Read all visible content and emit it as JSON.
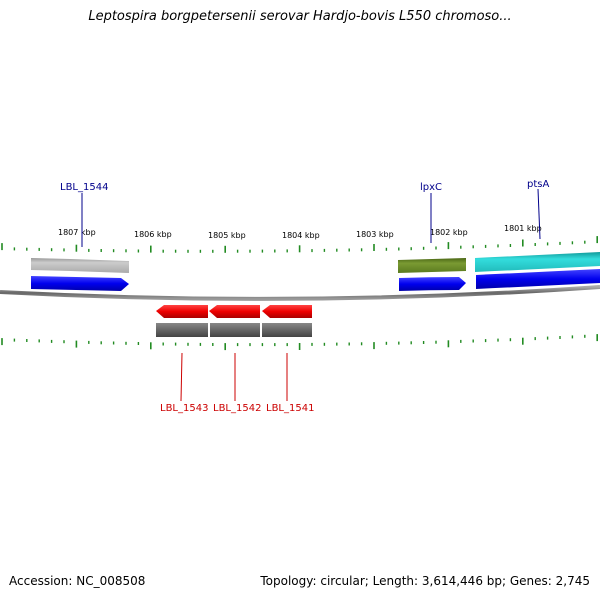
{
  "title": "Leptospira borgpetersenii serovar Hardjo-bovis L550 chromoso...",
  "footer": {
    "accession": "Accession: NC_008508",
    "summary": "Topology: circular; Length: 3,614,446 bp; Genes: 2,745"
  },
  "colors": {
    "backbone": "#777777",
    "tick": "#228b22",
    "forward_label": "#00008b",
    "reverse_label": "#cc0000",
    "cds_forward": "#0000ee",
    "cds_reverse": "#ee0000",
    "gene_reverse": "#666666",
    "gene_grey": "#bbbbbb",
    "gene_olive": "#6b8e23",
    "gene_cyan": "#22cccc"
  },
  "scale_labels": [
    "1807 kbp",
    "1806 kbp",
    "1805 kbp",
    "1804 kbp",
    "1803 kbp",
    "1802 kbp",
    "1801 kbp"
  ],
  "gene_labels": [
    {
      "text": "LBL_1544",
      "strand": "forward"
    },
    {
      "text": "lpxC",
      "strand": "forward"
    },
    {
      "text": "ptsA",
      "strand": "forward"
    },
    {
      "text": "LBL_1543",
      "strand": "reverse"
    },
    {
      "text": "LBL_1542",
      "strand": "reverse"
    },
    {
      "text": "LBL_1541",
      "strand": "reverse"
    }
  ]
}
